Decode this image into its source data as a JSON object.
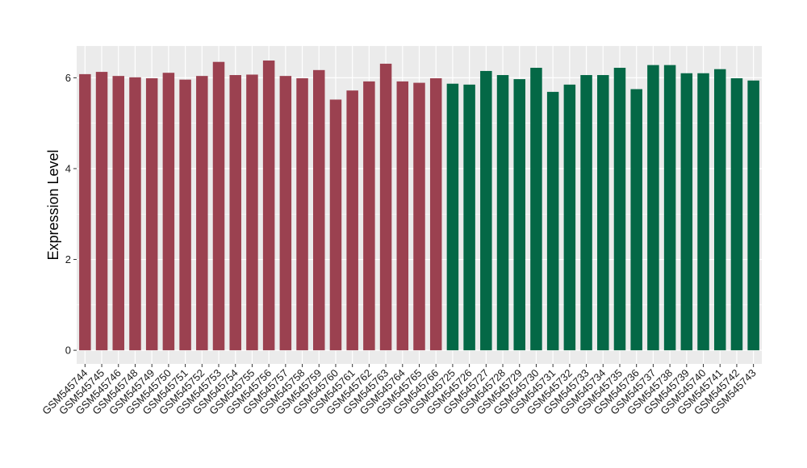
{
  "chart_data": {
    "type": "bar",
    "title": "",
    "xlabel": "",
    "ylabel": "Expression Level",
    "ylim": [
      -0.3,
      6.7
    ],
    "yticks": [
      0,
      2,
      4,
      6
    ],
    "grid": true,
    "legend": "none",
    "colors": {
      "group_a": "#9B4150",
      "group_b": "#046846",
      "panel_bg": "#EBEBEB",
      "grid": "#FFFFFF"
    },
    "categories": [
      "GSM545744",
      "GSM545745",
      "GSM545746",
      "GSM545748",
      "GSM545749",
      "GSM545750",
      "GSM545751",
      "GSM545752",
      "GSM545753",
      "GSM545754",
      "GSM545755",
      "GSM545756",
      "GSM545757",
      "GSM545758",
      "GSM545759",
      "GSM545760",
      "GSM545761",
      "GSM545762",
      "GSM545763",
      "GSM545764",
      "GSM545765",
      "GSM545766",
      "GSM545725",
      "GSM545726",
      "GSM545727",
      "GSM545728",
      "GSM545729",
      "GSM545730",
      "GSM545731",
      "GSM545732",
      "GSM545733",
      "GSM545734",
      "GSM545735",
      "GSM545736",
      "GSM545737",
      "GSM545738",
      "GSM545739",
      "GSM545740",
      "GSM545741",
      "GSM545742",
      "GSM545743"
    ],
    "values": [
      6.08,
      6.13,
      6.04,
      6.01,
      5.99,
      6.11,
      5.96,
      6.04,
      6.35,
      6.06,
      6.07,
      6.38,
      6.04,
      5.99,
      6.17,
      5.52,
      5.72,
      5.92,
      6.31,
      5.92,
      5.89,
      5.99,
      5.87,
      5.85,
      6.15,
      6.06,
      5.97,
      6.22,
      5.69,
      5.85,
      6.06,
      6.06,
      6.22,
      5.75,
      6.28,
      6.28,
      6.1,
      6.1,
      6.19,
      5.99,
      5.94
    ],
    "groups": [
      "a",
      "a",
      "a",
      "a",
      "a",
      "a",
      "a",
      "a",
      "a",
      "a",
      "a",
      "a",
      "a",
      "a",
      "a",
      "a",
      "a",
      "a",
      "a",
      "a",
      "a",
      "a",
      "b",
      "b",
      "b",
      "b",
      "b",
      "b",
      "b",
      "b",
      "b",
      "b",
      "b",
      "b",
      "b",
      "b",
      "b",
      "b",
      "b",
      "b",
      "b"
    ]
  }
}
